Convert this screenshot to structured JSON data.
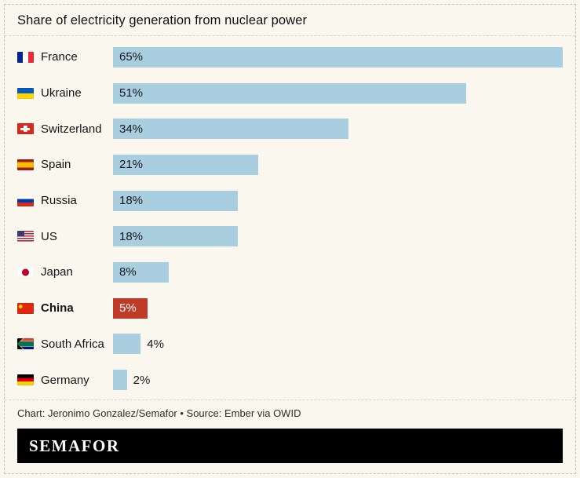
{
  "title": "Share of electricity generation from nuclear power",
  "footer": {
    "credit": "Chart: Jeronimo Gonzalez/Semafor • Source: Ember via OWID",
    "logo": "SEMAFOR"
  },
  "colors": {
    "background": "#faf8ee",
    "bar": "#a9cee0",
    "highlight": "#bf3b28",
    "logo_bar": "#000000"
  },
  "chart_data": {
    "type": "bar",
    "orientation": "horizontal",
    "unit": "%",
    "title": "Share of electricity generation from nuclear power",
    "categories": [
      "France",
      "Ukraine",
      "Switzerland",
      "Spain",
      "Russia",
      "US",
      "Japan",
      "China",
      "South Africa",
      "Germany"
    ],
    "values": [
      65,
      51,
      34,
      21,
      18,
      18,
      8,
      5,
      4,
      2
    ],
    "value_labels": [
      "65%",
      "51%",
      "34%",
      "21%",
      "18%",
      "18%",
      "8%",
      "5%",
      "4%",
      "2%"
    ],
    "flags": [
      "france",
      "ukraine",
      "switzerland",
      "spain",
      "russia",
      "us",
      "japan",
      "china",
      "south-africa",
      "germany"
    ],
    "highlight_category": "China",
    "xlim": [
      0,
      65
    ],
    "grid": false,
    "legend": false
  }
}
